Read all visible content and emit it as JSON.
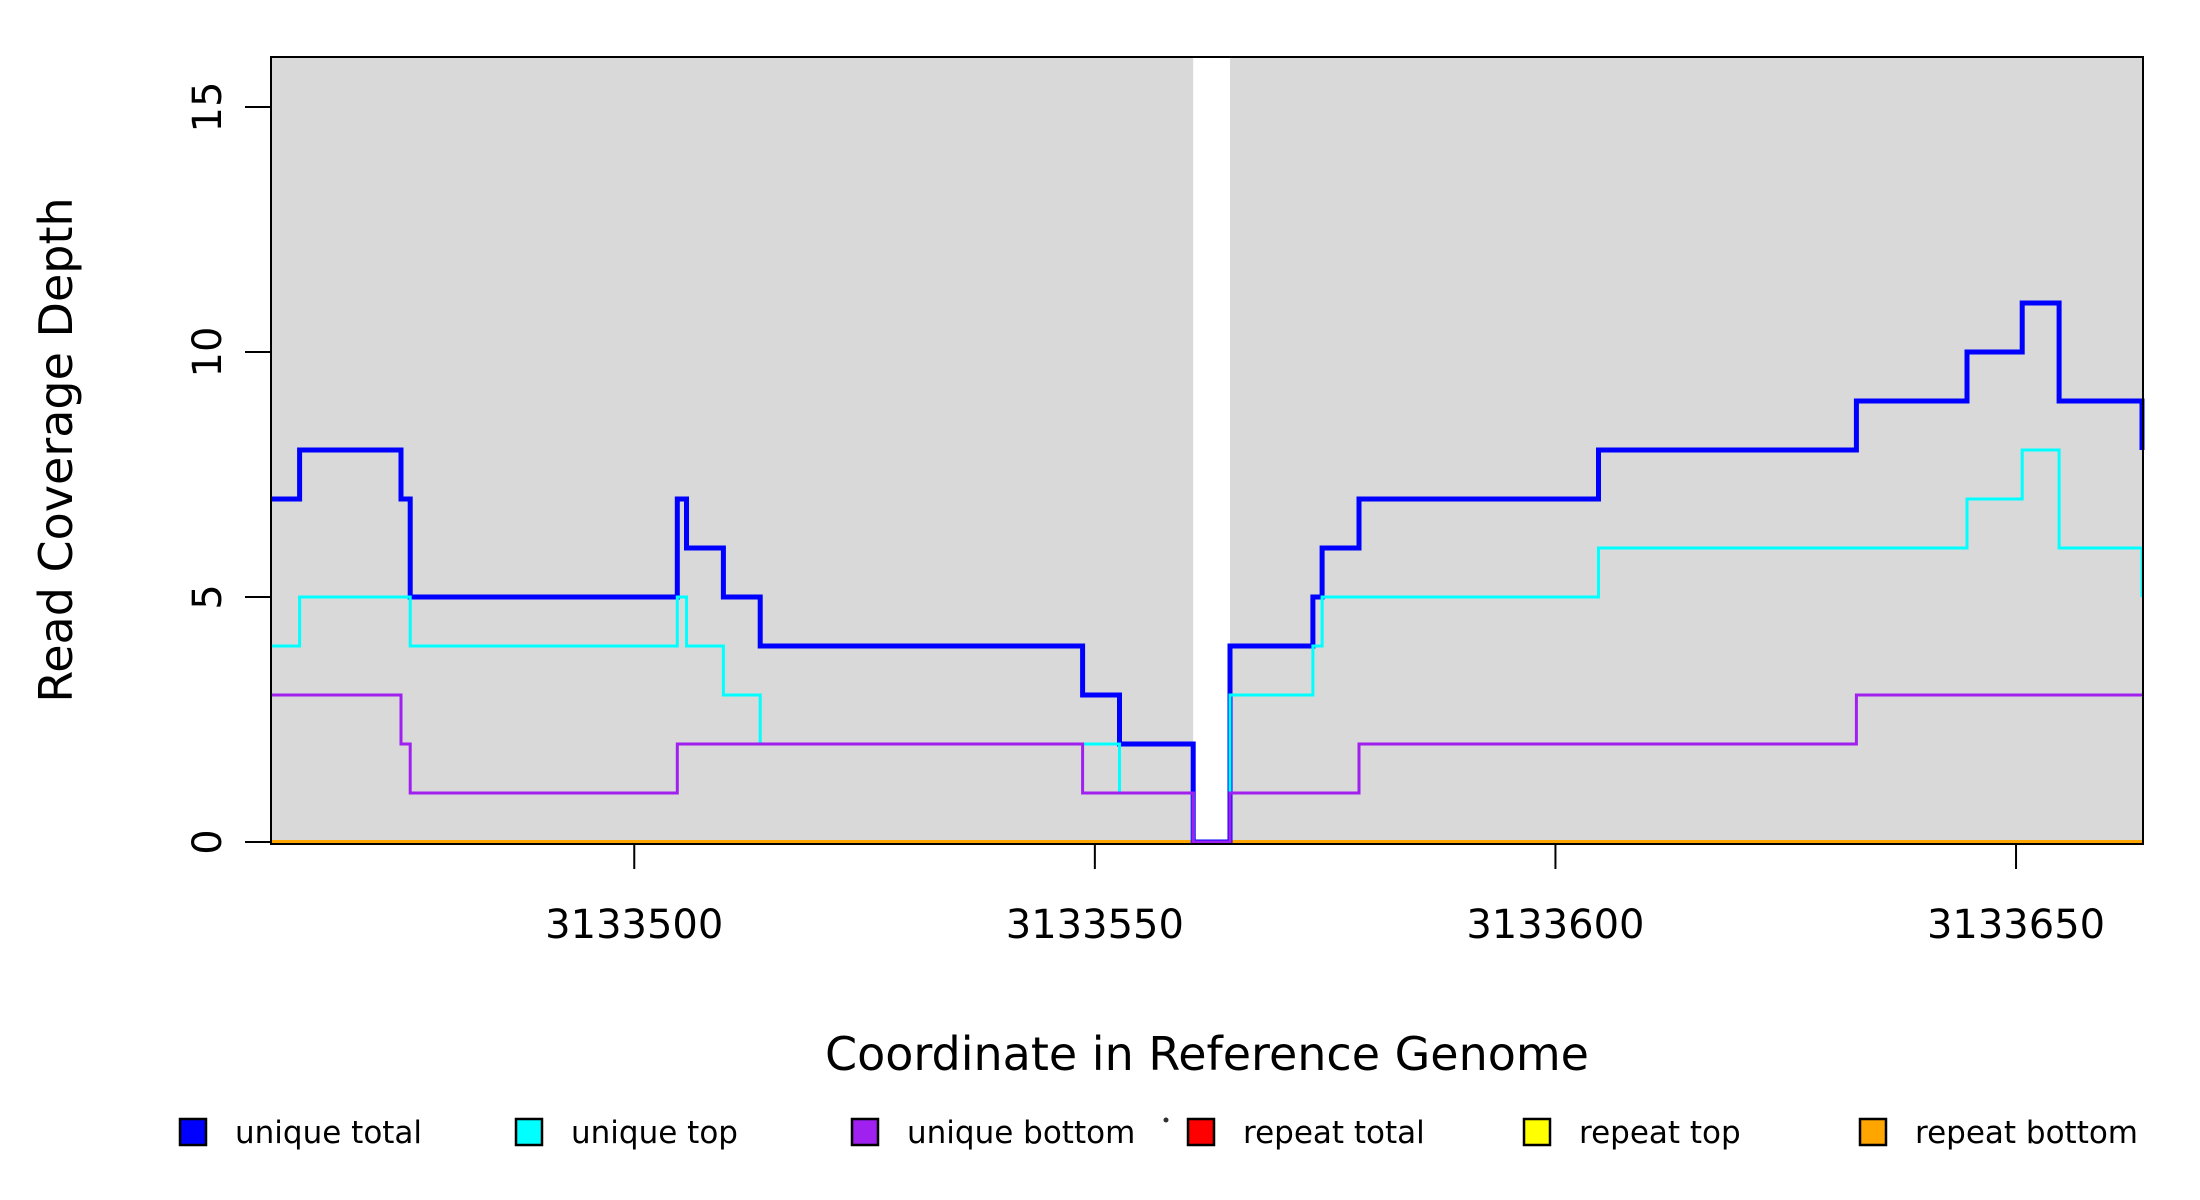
{
  "chart_data": {
    "type": "line",
    "subtype": "step-coverage",
    "title": "",
    "xlabel": "Coordinate in Reference Genome",
    "ylabel": "Read Coverage Depth",
    "xlim": [
      3133461,
      3133664
    ],
    "ylim": [
      0,
      16
    ],
    "x_ticks": [
      3133500,
      3133550,
      3133600,
      3133650
    ],
    "y_ticks": [
      0,
      5,
      10,
      15
    ],
    "grid": false,
    "plot_background_color": "#d9d9d9",
    "no_coverage_gap": {
      "start": 3133561,
      "end": 3133564,
      "note": "white column, all unique series drop to 0"
    },
    "segments": [
      {
        "start": 3133461,
        "end": 3133463,
        "unique_total": 7,
        "unique_top": 4,
        "unique_bottom": 3
      },
      {
        "start": 3133464,
        "end": 3133474,
        "unique_total": 8,
        "unique_top": 5,
        "unique_bottom": 3
      },
      {
        "start": 3133475,
        "end": 3133475,
        "unique_total": 7,
        "unique_top": 5,
        "unique_bottom": 2
      },
      {
        "start": 3133476,
        "end": 3133504,
        "unique_total": 5,
        "unique_top": 4,
        "unique_bottom": 1
      },
      {
        "start": 3133505,
        "end": 3133505,
        "unique_total": 7,
        "unique_top": 5,
        "unique_bottom": 2
      },
      {
        "start": 3133506,
        "end": 3133509,
        "unique_total": 6,
        "unique_top": 4,
        "unique_bottom": 2
      },
      {
        "start": 3133510,
        "end": 3133513,
        "unique_total": 5,
        "unique_top": 3,
        "unique_bottom": 2
      },
      {
        "start": 3133514,
        "end": 3133548,
        "unique_total": 4,
        "unique_top": 2,
        "unique_bottom": 2
      },
      {
        "start": 3133549,
        "end": 3133552,
        "unique_total": 3,
        "unique_top": 2,
        "unique_bottom": 1
      },
      {
        "start": 3133553,
        "end": 3133560,
        "unique_total": 2,
        "unique_top": 1,
        "unique_bottom": 1
      },
      {
        "start": 3133561,
        "end": 3133564,
        "unique_total": 0,
        "unique_top": 0,
        "unique_bottom": 0
      },
      {
        "start": 3133565,
        "end": 3133573,
        "unique_total": 4,
        "unique_top": 3,
        "unique_bottom": 1
      },
      {
        "start": 3133574,
        "end": 3133574,
        "unique_total": 5,
        "unique_top": 4,
        "unique_bottom": 1
      },
      {
        "start": 3133575,
        "end": 3133578,
        "unique_total": 6,
        "unique_top": 5,
        "unique_bottom": 1
      },
      {
        "start": 3133579,
        "end": 3133604,
        "unique_total": 7,
        "unique_top": 5,
        "unique_bottom": 2
      },
      {
        "start": 3133605,
        "end": 3133632,
        "unique_total": 8,
        "unique_top": 6,
        "unique_bottom": 2
      },
      {
        "start": 3133633,
        "end": 3133644,
        "unique_total": 9,
        "unique_top": 6,
        "unique_bottom": 3
      },
      {
        "start": 3133645,
        "end": 3133650,
        "unique_total": 10,
        "unique_top": 7,
        "unique_bottom": 3
      },
      {
        "start": 3133651,
        "end": 3133654,
        "unique_total": 11,
        "unique_top": 8,
        "unique_bottom": 3
      },
      {
        "start": 3133655,
        "end": 3133663,
        "unique_total": 9,
        "unique_top": 6,
        "unique_bottom": 3
      },
      {
        "start": 3133664,
        "end": 3133664,
        "unique_total": 8,
        "unique_top": 5,
        "unique_bottom": 3
      }
    ],
    "series": [
      {
        "name": "unique total",
        "key": "unique_total",
        "color": "#0000ff",
        "line_width": 5,
        "constant": null
      },
      {
        "name": "unique top",
        "key": "unique_top",
        "color": "#00ffff",
        "line_width": 3,
        "constant": null
      },
      {
        "name": "unique bottom",
        "key": "unique_bottom",
        "color": "#a020f0",
        "line_width": 3,
        "constant": null
      },
      {
        "name": "repeat total",
        "key": "repeat_total",
        "color": "#ff0000",
        "line_width": 3,
        "constant": 0
      },
      {
        "name": "repeat top",
        "key": "repeat_top",
        "color": "#ffff00",
        "line_width": 3,
        "constant": 0
      },
      {
        "name": "repeat bottom",
        "key": "repeat_bottom",
        "color": "#ffa500",
        "line_width": 4,
        "constant": 0
      }
    ],
    "legend": {
      "position": "bottom",
      "items": [
        {
          "label": "unique total",
          "color": "#0000ff"
        },
        {
          "label": "unique top",
          "color": "#00ffff"
        },
        {
          "label": "unique bottom",
          "color": "#a020f0"
        },
        {
          "label": "repeat total",
          "color": "#ff0000"
        },
        {
          "label": "repeat top",
          "color": "#ffff00"
        },
        {
          "label": "repeat bottom",
          "color": "#ffa500"
        }
      ]
    }
  }
}
